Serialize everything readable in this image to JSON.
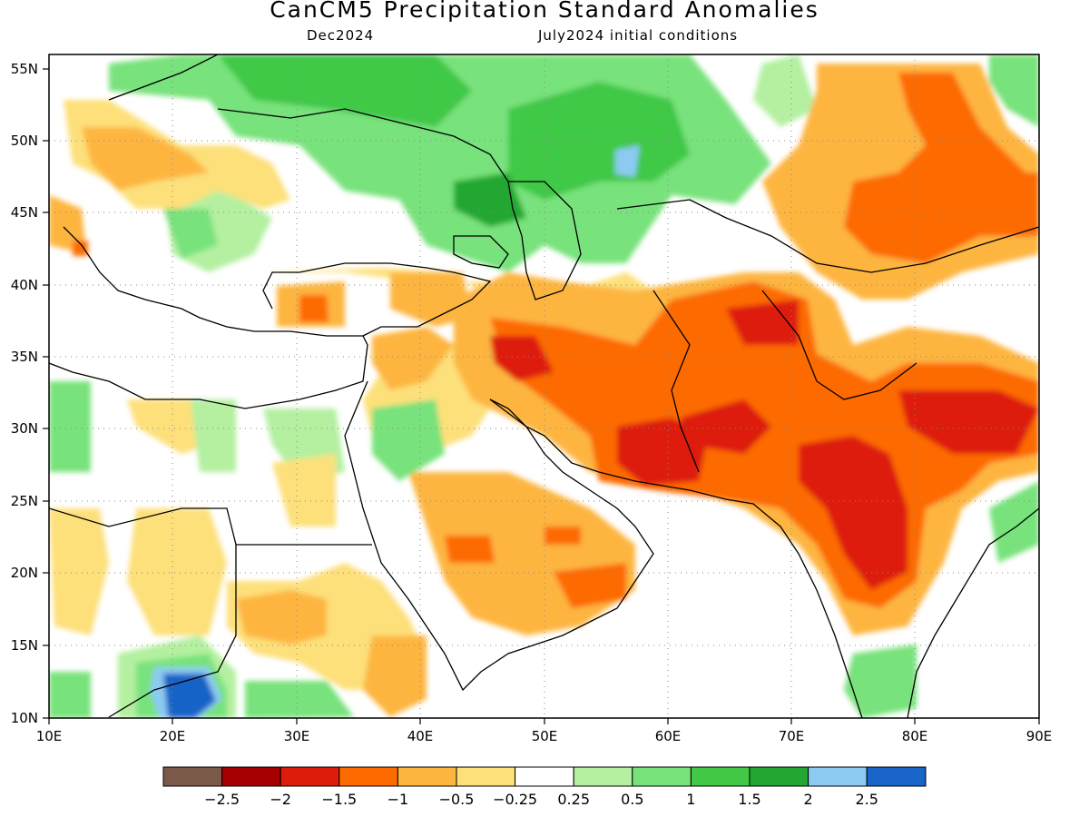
{
  "title": "CanCM5 Precipitation Standard Anomalies",
  "subtitle_left": "Dec2024",
  "subtitle_right": "July2024 initial conditions",
  "map": {
    "lon_range": [
      10,
      90
    ],
    "lat_range": [
      10,
      56
    ],
    "lon_ticks": [
      "10E",
      "20E",
      "30E",
      "40E",
      "50E",
      "60E",
      "70E",
      "80E",
      "90E"
    ],
    "lat_ticks": [
      "55N",
      "50N",
      "45N",
      "40N",
      "35N",
      "30N",
      "25N",
      "20N",
      "15N",
      "10N"
    ],
    "grid": "dotted"
  },
  "colorbar": {
    "colors": [
      "#7b5a4a",
      "#a50000",
      "#dd1c0c",
      "#fd6a00",
      "#fdb53f",
      "#fde07a",
      "#ffffff",
      "#b4f0a0",
      "#78e27b",
      "#40c846",
      "#22a832",
      "#8ccaf2",
      "#1964c8"
    ],
    "labels": [
      "−2.5",
      "−2",
      "−1.5",
      "−1",
      "−0.5",
      "−0.25",
      "0.25",
      "0.5",
      "1",
      "1.5",
      "2",
      "2.5"
    ]
  }
}
